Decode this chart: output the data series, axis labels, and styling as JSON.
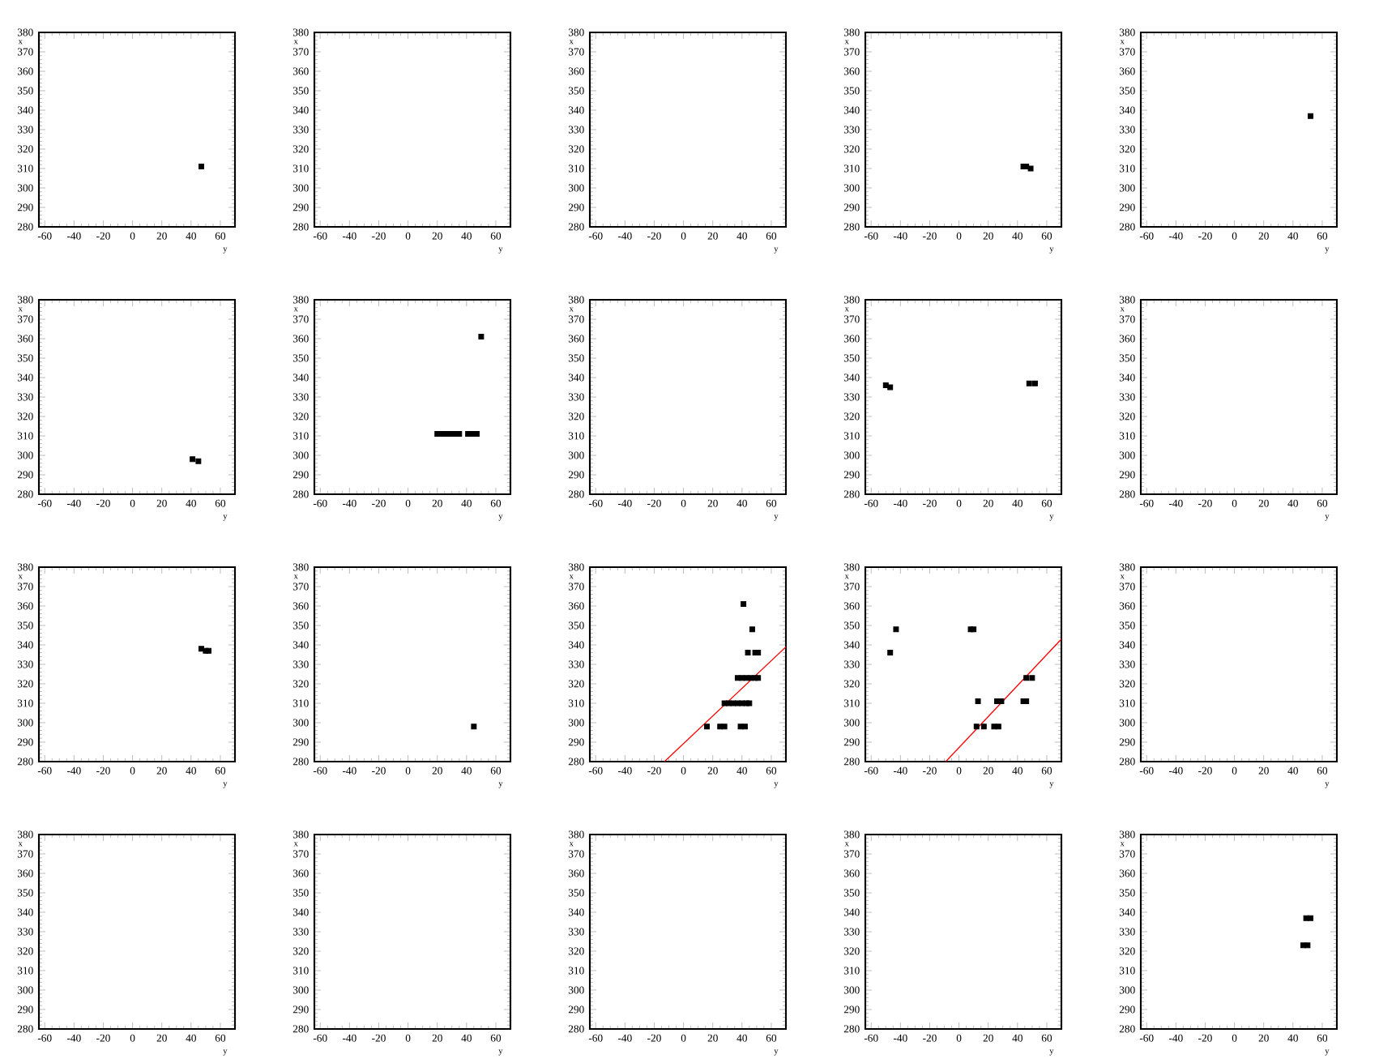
{
  "chart_data": [
    {
      "type": "scatter",
      "xlabel": "y",
      "ylabel": "x",
      "xlim": [
        -64,
        70
      ],
      "ylim": [
        280,
        380
      ],
      "xticks": [
        -60,
        -40,
        -20,
        0,
        20,
        40,
        60
      ],
      "yticks": [
        280,
        290,
        300,
        310,
        320,
        330,
        340,
        350,
        360,
        370,
        380
      ],
      "marker": "square",
      "series": [
        {
          "color": "#000000",
          "x": [
            47
          ],
          "values": [
            311
          ]
        }
      ]
    },
    {
      "type": "scatter",
      "xlabel": "y",
      "ylabel": "x",
      "xlim": [
        -64,
        70
      ],
      "ylim": [
        280,
        380
      ],
      "xticks": [
        -60,
        -40,
        -20,
        0,
        20,
        40,
        60
      ],
      "yticks": [
        280,
        290,
        300,
        310,
        320,
        330,
        340,
        350,
        360,
        370,
        380
      ]
    },
    {
      "type": "scatter",
      "xlabel": "y",
      "ylabel": "x",
      "xlim": [
        -64,
        70
      ],
      "ylim": [
        280,
        380
      ],
      "xticks": [
        -60,
        -40,
        -20,
        0,
        20,
        40,
        60
      ],
      "yticks": [
        280,
        290,
        300,
        310,
        320,
        330,
        340,
        350,
        360,
        370,
        380
      ]
    },
    {
      "type": "scatter",
      "xlabel": "y",
      "ylabel": "x",
      "xlim": [
        -64,
        70
      ],
      "ylim": [
        280,
        380
      ],
      "xticks": [
        -60,
        -40,
        -20,
        0,
        20,
        40,
        60
      ],
      "yticks": [
        280,
        290,
        300,
        310,
        320,
        330,
        340,
        350,
        360,
        370,
        380
      ],
      "marker": "square",
      "series": [
        {
          "color": "#000000",
          "x": [
            44,
            46,
            49
          ],
          "values": [
            311,
            311,
            310
          ]
        }
      ]
    },
    {
      "type": "scatter",
      "xlabel": "y",
      "ylabel": "x",
      "xlim": [
        -64,
        70
      ],
      "ylim": [
        280,
        380
      ],
      "xticks": [
        -60,
        -40,
        -20,
        0,
        20,
        40,
        60
      ],
      "yticks": [
        280,
        290,
        300,
        310,
        320,
        330,
        340,
        350,
        360,
        370,
        380
      ],
      "marker": "square",
      "series": [
        {
          "color": "#000000",
          "x": [
            52
          ],
          "values": [
            337
          ]
        }
      ]
    },
    {
      "type": "scatter",
      "xlabel": "y",
      "ylabel": "x",
      "xlim": [
        -64,
        70
      ],
      "ylim": [
        280,
        380
      ],
      "xticks": [
        -60,
        -40,
        -20,
        0,
        20,
        40,
        60
      ],
      "yticks": [
        280,
        290,
        300,
        310,
        320,
        330,
        340,
        350,
        360,
        370,
        380
      ],
      "marker": "square",
      "series": [
        {
          "color": "#000000",
          "x": [
            41,
            45
          ],
          "values": [
            298,
            297
          ]
        }
      ]
    },
    {
      "type": "scatter",
      "xlabel": "y",
      "ylabel": "x",
      "xlim": [
        -64,
        70
      ],
      "ylim": [
        280,
        380
      ],
      "xticks": [
        -60,
        -40,
        -20,
        0,
        20,
        40,
        60
      ],
      "yticks": [
        280,
        290,
        300,
        310,
        320,
        330,
        340,
        350,
        360,
        370,
        380
      ],
      "marker": "square",
      "series": [
        {
          "color": "#000000",
          "x": [
            20,
            23,
            26,
            29,
            32,
            35,
            41,
            44,
            47,
            50
          ],
          "values": [
            311,
            311,
            311,
            311,
            311,
            311,
            311,
            311,
            311,
            361
          ]
        }
      ]
    },
    {
      "type": "scatter",
      "xlabel": "y",
      "ylabel": "x",
      "xlim": [
        -64,
        70
      ],
      "ylim": [
        280,
        380
      ],
      "xticks": [
        -60,
        -40,
        -20,
        0,
        20,
        40,
        60
      ],
      "yticks": [
        280,
        290,
        300,
        310,
        320,
        330,
        340,
        350,
        360,
        370,
        380
      ]
    },
    {
      "type": "scatter",
      "xlabel": "y",
      "ylabel": "x",
      "xlim": [
        -64,
        70
      ],
      "ylim": [
        280,
        380
      ],
      "xticks": [
        -60,
        -40,
        -20,
        0,
        20,
        40,
        60
      ],
      "yticks": [
        280,
        290,
        300,
        310,
        320,
        330,
        340,
        350,
        360,
        370,
        380
      ],
      "marker": "square",
      "series": [
        {
          "color": "#000000",
          "x": [
            -50,
            -47,
            48,
            52
          ],
          "values": [
            336,
            335,
            337,
            337
          ]
        }
      ]
    },
    {
      "type": "scatter",
      "xlabel": "y",
      "ylabel": "x",
      "xlim": [
        -64,
        70
      ],
      "ylim": [
        280,
        380
      ],
      "xticks": [
        -60,
        -40,
        -20,
        0,
        20,
        40,
        60
      ],
      "yticks": [
        280,
        290,
        300,
        310,
        320,
        330,
        340,
        350,
        360,
        370,
        380
      ]
    },
    {
      "type": "scatter",
      "xlabel": "y",
      "ylabel": "x",
      "xlim": [
        -64,
        70
      ],
      "ylim": [
        280,
        380
      ],
      "xticks": [
        -60,
        -40,
        -20,
        0,
        20,
        40,
        60
      ],
      "yticks": [
        280,
        290,
        300,
        310,
        320,
        330,
        340,
        350,
        360,
        370,
        380
      ],
      "marker": "square",
      "series": [
        {
          "color": "#000000",
          "x": [
            47,
            50,
            52
          ],
          "values": [
            338,
            337,
            337
          ]
        }
      ]
    },
    {
      "type": "scatter",
      "xlabel": "y",
      "ylabel": "x",
      "xlim": [
        -64,
        70
      ],
      "ylim": [
        280,
        380
      ],
      "xticks": [
        -60,
        -40,
        -20,
        0,
        20,
        40,
        60
      ],
      "yticks": [
        280,
        290,
        300,
        310,
        320,
        330,
        340,
        350,
        360,
        370,
        380
      ],
      "marker": "square",
      "series": [
        {
          "color": "#000000",
          "x": [
            45
          ],
          "values": [
            298
          ]
        }
      ]
    },
    {
      "type": "scatter",
      "xlabel": "y",
      "ylabel": "x",
      "xlim": [
        -64,
        70
      ],
      "ylim": [
        280,
        380
      ],
      "xticks": [
        -60,
        -40,
        -20,
        0,
        20,
        40,
        60
      ],
      "yticks": [
        280,
        290,
        300,
        310,
        320,
        330,
        340,
        350,
        360,
        370,
        380
      ],
      "series": [
        {
          "color": "#000000",
          "marker": "square",
          "x": [
            41,
            47,
            44,
            49,
            51,
            37,
            40,
            43,
            46,
            49,
            51,
            28,
            31,
            34,
            37,
            40,
            43,
            45,
            16,
            25,
            28,
            39,
            42
          ],
          "values": [
            361,
            348,
            336,
            336,
            336,
            323,
            323,
            323,
            323,
            323,
            323,
            310,
            310,
            310,
            310,
            310,
            310,
            310,
            298,
            298,
            298,
            298,
            298
          ]
        },
        {
          "type": "line",
          "color": "#ff0000",
          "x": [
            -13,
            70
          ],
          "values": [
            280,
            339
          ]
        }
      ]
    },
    {
      "type": "scatter",
      "xlabel": "y",
      "ylabel": "x",
      "xlim": [
        -64,
        70
      ],
      "ylim": [
        280,
        380
      ],
      "xticks": [
        -60,
        -40,
        -20,
        0,
        20,
        40,
        60
      ],
      "yticks": [
        280,
        290,
        300,
        310,
        320,
        330,
        340,
        350,
        360,
        370,
        380
      ],
      "series": [
        {
          "color": "#000000",
          "marker": "square",
          "x": [
            -47,
            -43,
            8,
            10,
            13,
            26,
            29,
            44,
            46,
            12,
            17,
            24,
            27,
            46,
            50
          ],
          "values": [
            336,
            348,
            348,
            348,
            311,
            311,
            311,
            311,
            311,
            298,
            298,
            298,
            298,
            323,
            323
          ]
        },
        {
          "type": "line",
          "color": "#ff0000",
          "x": [
            -9,
            70
          ],
          "values": [
            280,
            343
          ]
        }
      ]
    },
    {
      "type": "scatter",
      "xlabel": "y",
      "ylabel": "x",
      "xlim": [
        -64,
        70
      ],
      "ylim": [
        280,
        380
      ],
      "xticks": [
        -60,
        -40,
        -20,
        0,
        20,
        40,
        60
      ],
      "yticks": [
        280,
        290,
        300,
        310,
        320,
        330,
        340,
        350,
        360,
        370,
        380
      ]
    },
    {
      "type": "scatter",
      "xlabel": "y",
      "ylabel": "x",
      "xlim": [
        -64,
        70
      ],
      "ylim": [
        280,
        380
      ],
      "xticks": [
        -60,
        -40,
        -20,
        0,
        20,
        40,
        60
      ],
      "yticks": [
        280,
        290,
        300,
        310,
        320,
        330,
        340,
        350,
        360,
        370,
        380
      ]
    },
    {
      "type": "scatter",
      "xlabel": "y",
      "ylabel": "x",
      "xlim": [
        -64,
        70
      ],
      "ylim": [
        280,
        380
      ],
      "xticks": [
        -60,
        -40,
        -20,
        0,
        20,
        40,
        60
      ],
      "yticks": [
        280,
        290,
        300,
        310,
        320,
        330,
        340,
        350,
        360,
        370,
        380
      ]
    },
    {
      "type": "scatter",
      "xlabel": "y",
      "ylabel": "x",
      "xlim": [
        -64,
        70
      ],
      "ylim": [
        280,
        380
      ],
      "xticks": [
        -60,
        -40,
        -20,
        0,
        20,
        40,
        60
      ],
      "yticks": [
        280,
        290,
        300,
        310,
        320,
        330,
        340,
        350,
        360,
        370,
        380
      ]
    },
    {
      "type": "scatter",
      "xlabel": "y",
      "ylabel": "x",
      "xlim": [
        -64,
        70
      ],
      "ylim": [
        280,
        380
      ],
      "xticks": [
        -60,
        -40,
        -20,
        0,
        20,
        40,
        60
      ],
      "yticks": [
        280,
        290,
        300,
        310,
        320,
        330,
        340,
        350,
        360,
        370,
        380
      ]
    },
    {
      "type": "scatter",
      "xlabel": "y",
      "ylabel": "x",
      "xlim": [
        -64,
        70
      ],
      "ylim": [
        280,
        380
      ],
      "xticks": [
        -60,
        -40,
        -20,
        0,
        20,
        40,
        60
      ],
      "yticks": [
        280,
        290,
        300,
        310,
        320,
        330,
        340,
        350,
        360,
        370,
        380
      ],
      "marker": "square",
      "series": [
        {
          "color": "#000000",
          "x": [
            49,
            52,
            47,
            50
          ],
          "values": [
            337,
            337,
            323,
            323
          ]
        }
      ]
    }
  ]
}
